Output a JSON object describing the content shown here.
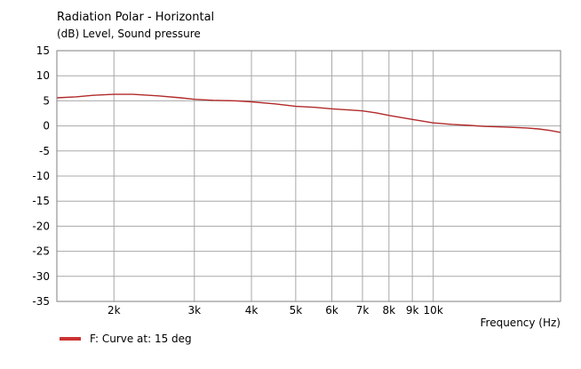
{
  "colors": {
    "series": "#b22a2a",
    "grid": "#a8a8a8",
    "frame": "#7f7f7f",
    "legend_swatch": "#cc3333"
  },
  "chart_data": {
    "type": "line",
    "title": "Radiation Polar - Horizontal",
    "subtitle": "(dB)  Level, Sound pressure",
    "xlabel": "Frequency   (Hz)",
    "ylabel": "(dB)",
    "x_scale": "log",
    "xlim": [
      1500,
      19000
    ],
    "ylim": [
      -35,
      15
    ],
    "y_ticks": [
      15,
      10,
      5,
      0,
      -5,
      -10,
      -15,
      -20,
      -25,
      -30,
      -35
    ],
    "x_ticks": [
      {
        "value": 2000,
        "label": "2k"
      },
      {
        "value": 3000,
        "label": "3k"
      },
      {
        "value": 4000,
        "label": "4k"
      },
      {
        "value": 5000,
        "label": "5k"
      },
      {
        "value": 6000,
        "label": "6k"
      },
      {
        "value": 7000,
        "label": "7k"
      },
      {
        "value": 8000,
        "label": "8k"
      },
      {
        "value": 9000,
        "label": "9k"
      },
      {
        "value": 10000,
        "label": "10k"
      }
    ],
    "grid": true,
    "legend_position": "bottom-left",
    "series": [
      {
        "name": "F: Curve at: 15 deg",
        "x": [
          1500,
          1650,
          1800,
          2000,
          2200,
          2500,
          2800,
          3000,
          3300,
          3700,
          4000,
          4500,
          5000,
          5500,
          6000,
          6500,
          7000,
          7500,
          8000,
          9000,
          10000,
          11000,
          12000,
          13000,
          14000,
          15000,
          16000,
          17000,
          18000,
          19000
        ],
        "y": [
          5.6,
          5.8,
          6.1,
          6.3,
          6.3,
          6.0,
          5.6,
          5.3,
          5.1,
          5.0,
          4.8,
          4.4,
          3.9,
          3.7,
          3.4,
          3.2,
          3.0,
          2.6,
          2.1,
          1.3,
          0.6,
          0.3,
          0.1,
          -0.1,
          -0.2,
          -0.3,
          -0.4,
          -0.6,
          -0.9,
          -1.3
        ]
      }
    ]
  }
}
